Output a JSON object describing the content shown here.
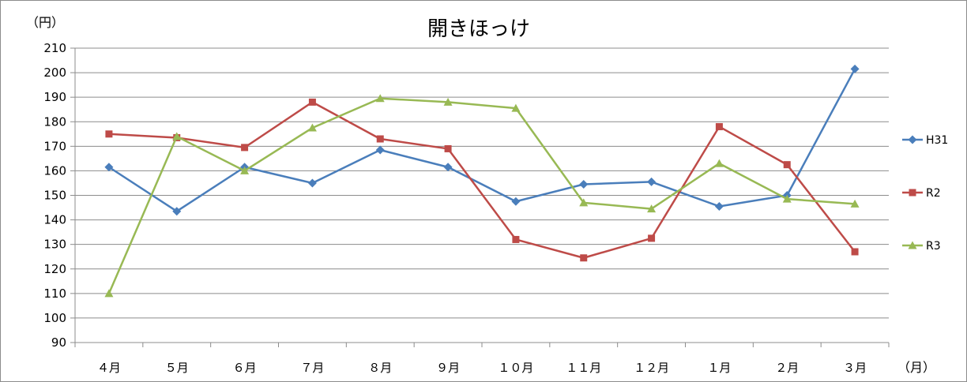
{
  "chart_data": {
    "type": "line",
    "title": "開きほっけ",
    "ylabel": "（円）",
    "xlabel": "（月）",
    "categories": [
      "４月",
      "５月",
      "６月",
      "７月",
      "８月",
      "９月",
      "１０月",
      "１１月",
      "１２月",
      "１月",
      "２月",
      "３月"
    ],
    "ylim": [
      90,
      210
    ],
    "yticks": [
      90,
      100,
      110,
      120,
      130,
      140,
      150,
      160,
      170,
      180,
      190,
      200,
      210
    ],
    "grid": true,
    "legend": "right",
    "series": [
      {
        "name": "H31",
        "color": "#4a7ebb",
        "marker": "diamond",
        "values": [
          161.5,
          143.5,
          161.5,
          155,
          168.5,
          161.5,
          147.5,
          154.5,
          155.5,
          145.5,
          150,
          201.5
        ]
      },
      {
        "name": "R2",
        "color": "#be4b48",
        "marker": "square",
        "values": [
          175,
          173.5,
          169.5,
          188,
          173,
          169,
          132,
          124.5,
          132.5,
          178,
          162.5,
          127
        ]
      },
      {
        "name": "R3",
        "color": "#98b954",
        "marker": "triangle",
        "values": [
          110,
          174,
          160,
          177.5,
          189.5,
          188,
          185.5,
          147,
          144.5,
          163,
          148.5,
          146.5
        ]
      }
    ]
  }
}
